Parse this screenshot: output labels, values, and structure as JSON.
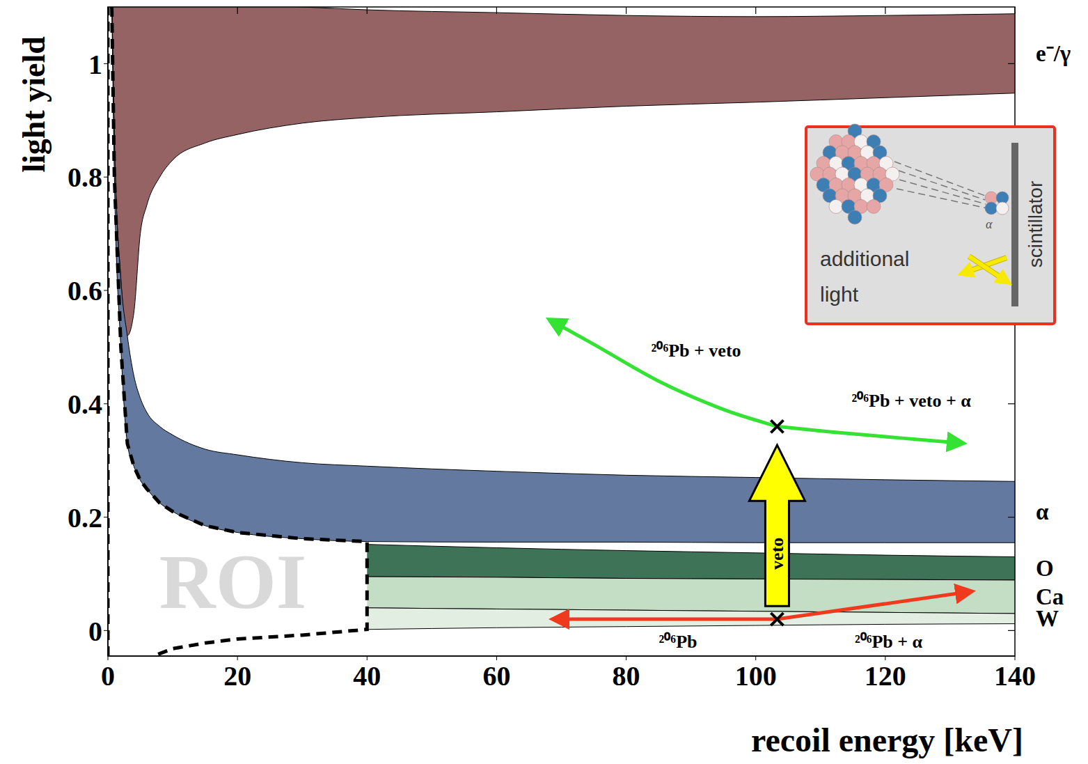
{
  "chart_data": {
    "type": "area",
    "x_label": "recoil energy [keV]",
    "y_label": "light yield",
    "xlim": [
      0,
      140
    ],
    "xticks": [
      0,
      20,
      40,
      60,
      80,
      100,
      120,
      140
    ],
    "ylim": [
      -0.045,
      1.1
    ],
    "yticks": [
      0,
      0.2,
      0.4,
      0.6,
      0.8,
      1
    ],
    "grid": false,
    "series": [
      {
        "name": "e⁻/γ",
        "color": "#956363",
        "x": [
          0.5,
          1,
          2,
          3,
          4,
          5,
          6,
          8,
          10,
          15,
          20,
          30,
          40,
          60,
          80,
          100,
          120,
          140
        ],
        "lower": [
          1.2,
          0.87,
          0.62,
          0.52,
          0.56,
          0.7,
          0.75,
          0.8,
          0.83,
          0.86,
          0.875,
          0.895,
          0.905,
          0.915,
          0.925,
          0.932,
          0.94,
          0.948
        ],
        "upper": [
          1.2,
          1.2,
          1.2,
          1.2,
          1.2,
          1.2,
          1.2,
          1.2,
          1.2,
          1.11,
          1.105,
          1.1,
          1.095,
          1.09,
          1.085,
          1.083,
          1.085,
          1.088
        ]
      },
      {
        "name": "α",
        "color": "#64799f",
        "x": [
          0.5,
          1,
          2,
          3,
          4,
          5,
          6,
          8,
          10,
          15,
          20,
          30,
          40,
          60,
          80,
          100,
          120,
          140
        ],
        "lower": [
          1.2,
          0.8,
          0.5,
          0.33,
          0.29,
          0.265,
          0.25,
          0.225,
          0.21,
          0.185,
          0.173,
          0.162,
          0.157,
          0.156,
          0.156,
          0.155,
          0.155,
          0.155
        ],
        "upper": [
          1.2,
          0.87,
          0.62,
          0.52,
          0.45,
          0.41,
          0.385,
          0.36,
          0.345,
          0.32,
          0.31,
          0.296,
          0.29,
          0.281,
          0.274,
          0.27,
          0.266,
          0.263
        ]
      },
      {
        "name": "O",
        "color": "#3f7357",
        "x": [
          40,
          60,
          80,
          100,
          120,
          140
        ],
        "lower": [
          0.095,
          0.094,
          0.092,
          0.091,
          0.09,
          0.089
        ],
        "upper": [
          0.152,
          0.146,
          0.141,
          0.137,
          0.133,
          0.13
        ]
      },
      {
        "name": "Ca",
        "color": "#c4dec6",
        "x": [
          40,
          60,
          80,
          100,
          120,
          140
        ],
        "lower": [
          0.04,
          0.038,
          0.036,
          0.034,
          0.032,
          0.03
        ],
        "upper": [
          0.095,
          0.094,
          0.092,
          0.091,
          0.09,
          0.089
        ]
      },
      {
        "name": "W",
        "color": "#e3eee3",
        "x": [
          40,
          60,
          80,
          100,
          120,
          140
        ],
        "lower": [
          0.002,
          0.005,
          0.007,
          0.009,
          0.011,
          0.012
        ],
        "upper": [
          0.04,
          0.038,
          0.036,
          0.034,
          0.032,
          0.03
        ]
      }
    ],
    "roi": {
      "label": "ROI",
      "label_x": 19.3,
      "label_y": 0.086,
      "boundary": [
        {
          "x": [
            0.6,
            1,
            2,
            3,
            4,
            5,
            6,
            8,
            10,
            15,
            20,
            30,
            40,
            40,
            30,
            20,
            15,
            10,
            7
          ],
          "y": [
            1.1,
            0.8,
            0.5,
            0.33,
            0.29,
            0.265,
            0.25,
            0.225,
            0.21,
            0.185,
            0.173,
            0.162,
            0.157,
            0.002,
            -0.008,
            -0.015,
            -0.022,
            -0.032,
            -0.045
          ]
        },
        {
          "x": [
            0,
            0
          ],
          "y": [
            -0.045,
            1.1
          ]
        }
      ]
    },
    "arrows": [
      {
        "color": "#33e233",
        "x": [
          103.3,
          95,
          85,
          75,
          68.7
        ],
        "y": [
          0.36,
          0.39,
          0.44,
          0.505,
          0.545
        ]
      },
      {
        "color": "#33e233",
        "x": [
          103.3,
          112,
          122,
          131.4
        ],
        "y": [
          0.36,
          0.35,
          0.34,
          0.331
        ]
      },
      {
        "color": "#f03a1e",
        "x": [
          103.3,
          69.3
        ],
        "y": [
          0.02,
          0.02
        ]
      },
      {
        "color": "#f03a1e",
        "x": [
          103.3,
          132.7
        ],
        "y": [
          0.02,
          0.068
        ]
      }
    ],
    "veto_arrow": {
      "label": "veto",
      "color": "#ffff00",
      "x": [
        103.3,
        103.3
      ],
      "y": [
        0.043,
        0.327
      ]
    },
    "markers": {
      "x": [
        103.3,
        103.3
      ],
      "y": [
        0.36,
        0.02
      ]
    },
    "annotations": [
      {
        "text": "²⁰⁶Pb + veto",
        "x": 90.8,
        "y": 0.494
      },
      {
        "text": "²⁰⁶Pb + veto + α",
        "x": 124,
        "y": 0.405
      },
      {
        "text": "²⁰⁶Pb",
        "x": 88,
        "y": -0.02
      },
      {
        "text": "²⁰⁶Pb + α",
        "x": 120.5,
        "y": -0.02
      }
    ],
    "inset": {
      "label": "additional light",
      "detector": "scintillator",
      "particle": "α"
    }
  }
}
